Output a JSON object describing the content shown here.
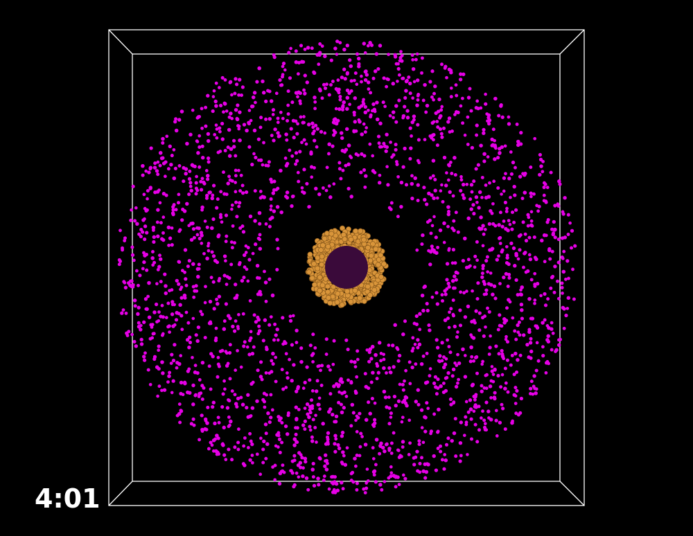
{
  "timestamp": "4:01",
  "colors": {
    "background": "#000000",
    "box_outline": "#ffffff",
    "outer_particles": "#e600e6",
    "shell_particles": "#d9953a",
    "shell_particle_edge": "#8a5a1c",
    "core": "#3a0a3a"
  }
}
